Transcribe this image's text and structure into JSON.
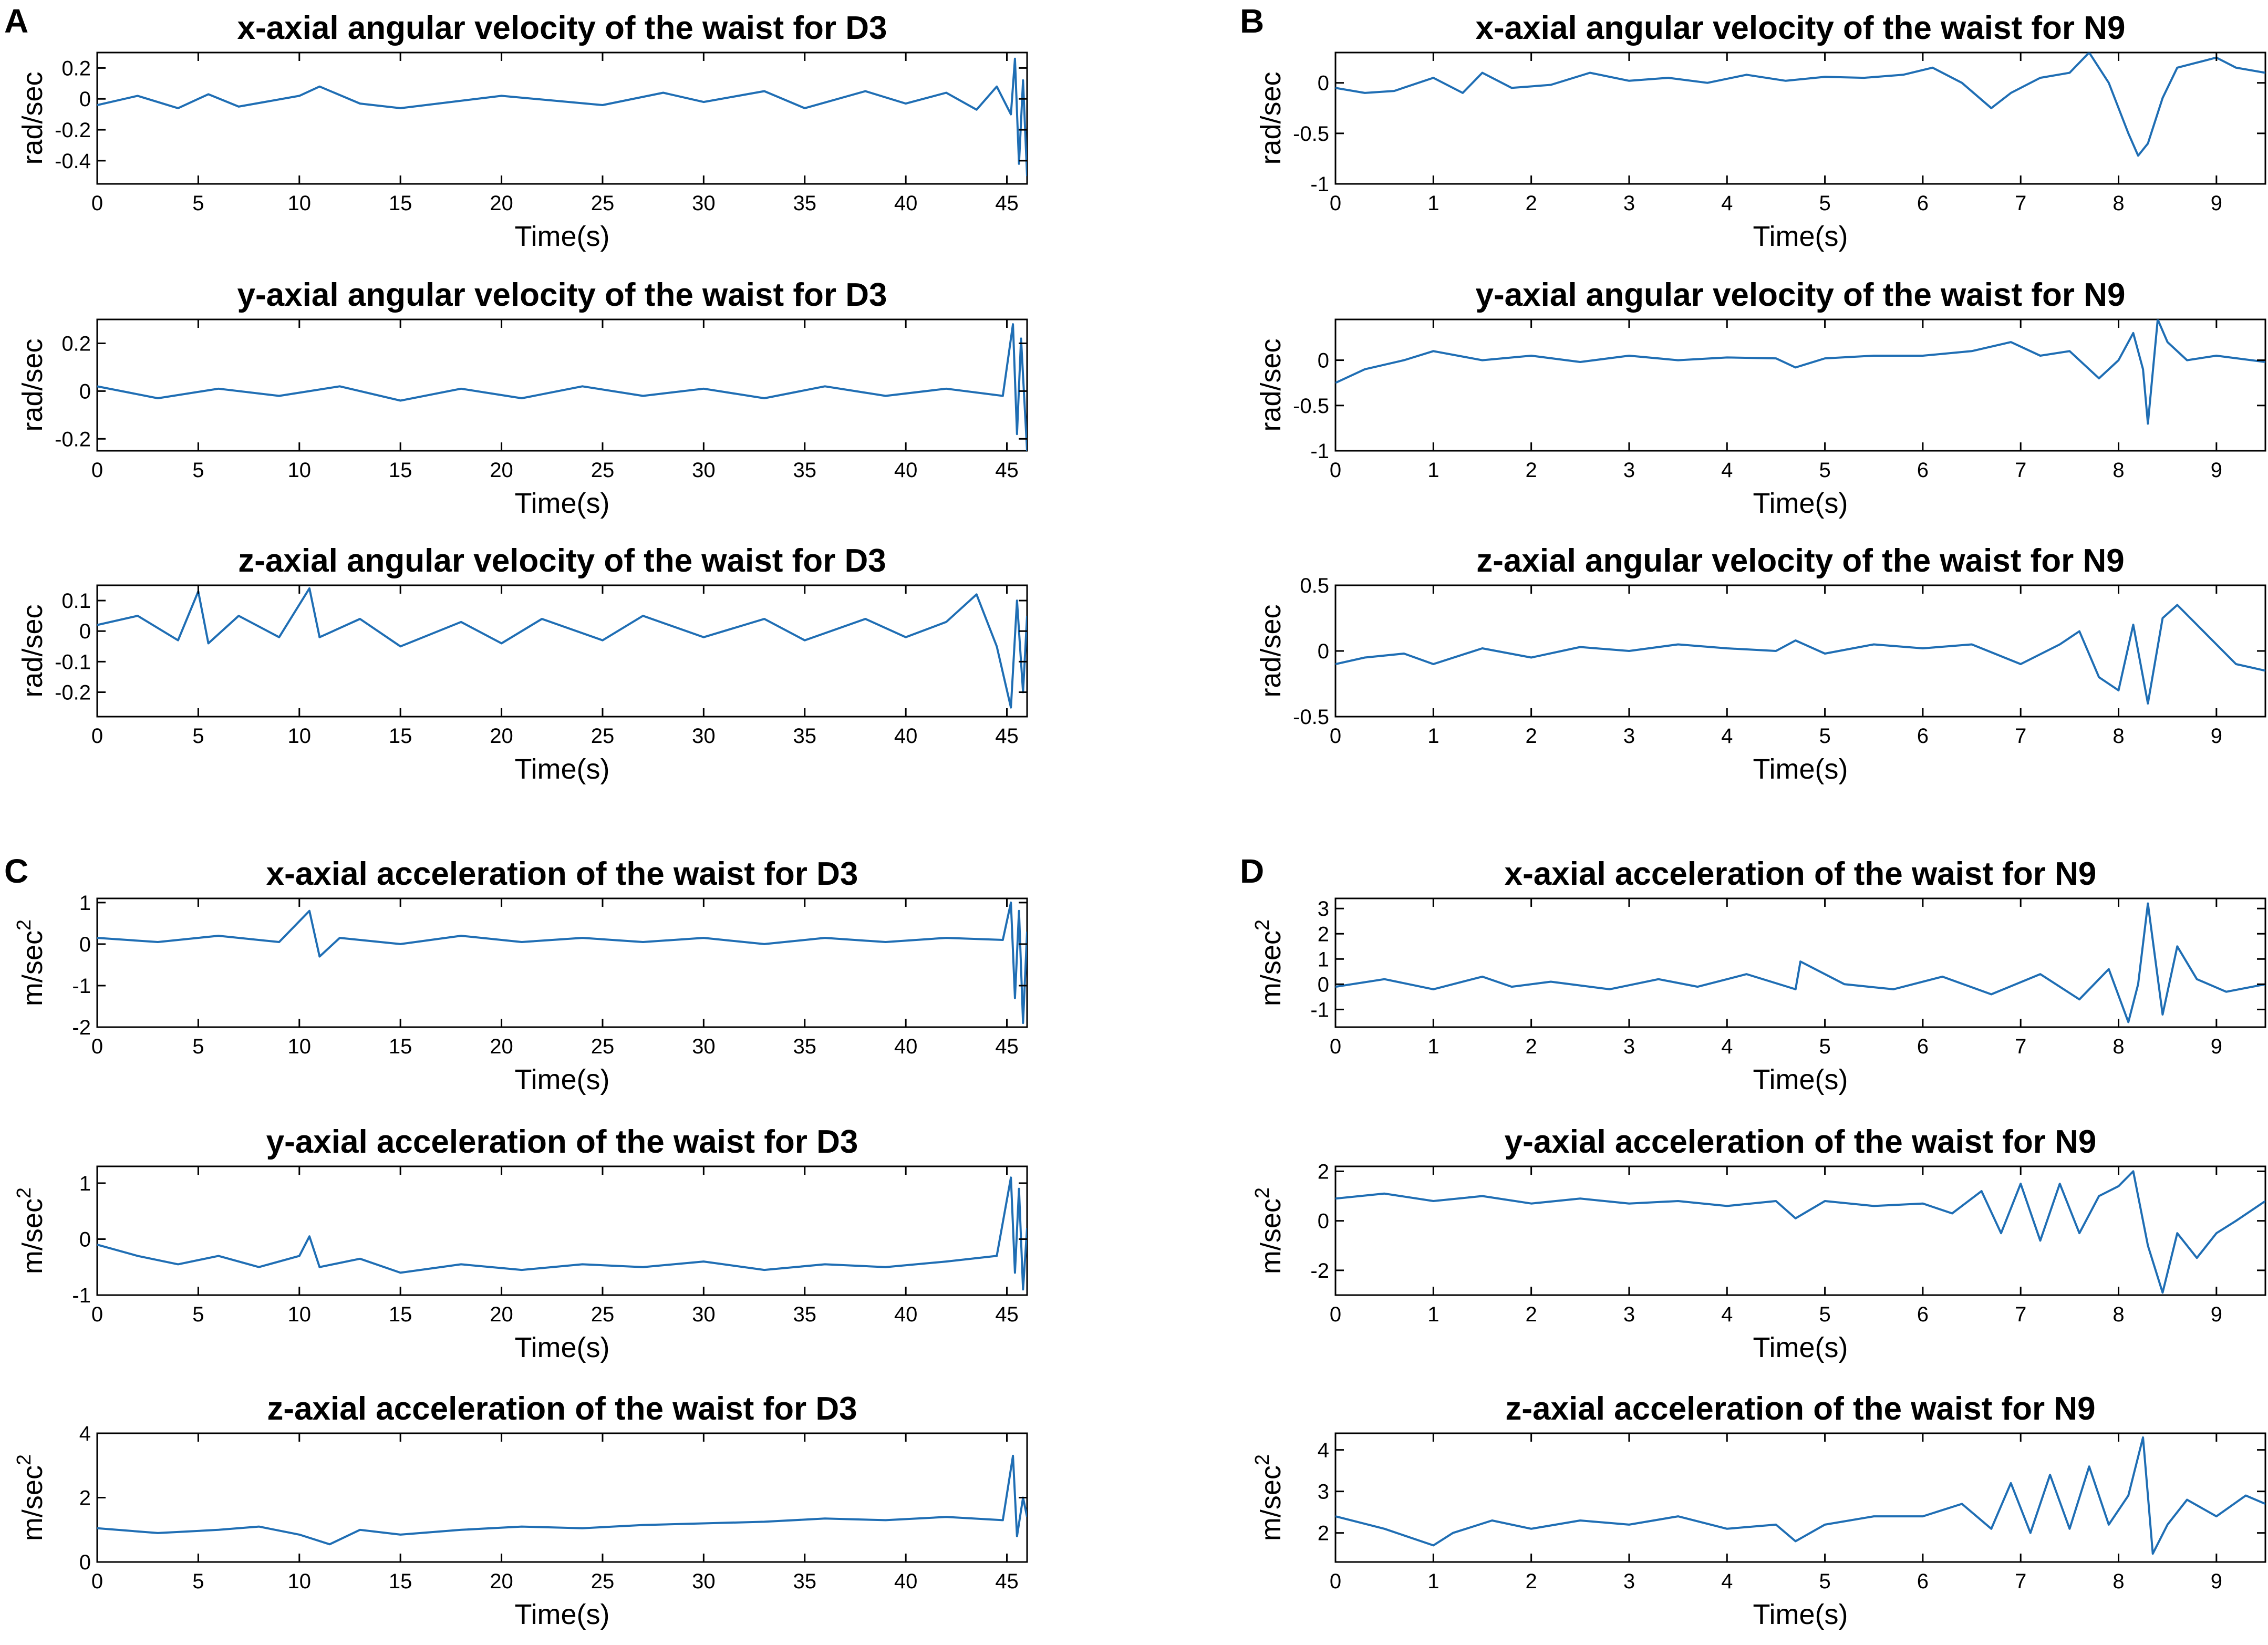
{
  "panel_labels": [
    "A",
    "B",
    "C",
    "D"
  ],
  "colors": {
    "series": "#1f6eb4",
    "axes": "#000000",
    "background": "#ffffff"
  },
  "chart_data": [
    {
      "type": "line",
      "panel": "A",
      "title": "x-axial angular velocity of the waist for D3",
      "xlabel": "Time(s)",
      "ylabel": "rad/sec",
      "xlim": [
        0,
        46
      ],
      "ylim": [
        -0.55,
        0.3
      ],
      "xticks": [
        0,
        5,
        10,
        15,
        20,
        25,
        30,
        35,
        40,
        45
      ],
      "yticks": [
        0.2,
        0,
        -0.2,
        -0.4
      ],
      "series": [
        {
          "x": [
            0,
            2,
            4,
            5.5,
            7,
            10,
            11,
            13,
            15,
            20,
            25,
            28,
            30,
            33,
            35,
            38,
            40,
            42,
            43.5,
            44.5,
            45.2,
            45.4,
            45.6,
            45.8,
            46
          ],
          "y": [
            -0.04,
            0.02,
            -0.06,
            0.03,
            -0.05,
            0.02,
            0.08,
            -0.03,
            -0.06,
            0.02,
            -0.04,
            0.04,
            -0.02,
            0.05,
            -0.06,
            0.05,
            -0.03,
            0.04,
            -0.07,
            0.08,
            -0.1,
            0.26,
            -0.42,
            0.12,
            -0.5
          ]
        }
      ],
      "grid": false
    },
    {
      "type": "line",
      "panel": "A",
      "title": "y-axial angular velocity of the waist for D3",
      "xlabel": "Time(s)",
      "ylabel": "rad/sec",
      "xlim": [
        0,
        46
      ],
      "ylim": [
        -0.25,
        0.3
      ],
      "xticks": [
        0,
        5,
        10,
        15,
        20,
        25,
        30,
        35,
        40,
        45
      ],
      "yticks": [
        0.2,
        0,
        -0.2
      ],
      "series": [
        {
          "x": [
            0,
            3,
            6,
            9,
            12,
            15,
            18,
            21,
            24,
            27,
            30,
            33,
            36,
            39,
            42,
            44.8,
            45.3,
            45.5,
            45.7,
            46
          ],
          "y": [
            0.02,
            -0.03,
            0.01,
            -0.02,
            0.02,
            -0.04,
            0.01,
            -0.03,
            0.02,
            -0.02,
            0.01,
            -0.03,
            0.02,
            -0.02,
            0.01,
            -0.02,
            0.28,
            -0.18,
            0.22,
            -0.25
          ]
        }
      ],
      "grid": false
    },
    {
      "type": "line",
      "panel": "A",
      "title": "z-axial angular velocity of the waist for D3",
      "xlabel": "Time(s)",
      "ylabel": "rad/sec",
      "xlim": [
        0,
        46
      ],
      "ylim": [
        -0.28,
        0.15
      ],
      "xticks": [
        0,
        5,
        10,
        15,
        20,
        25,
        30,
        35,
        40,
        45
      ],
      "yticks": [
        0.1,
        0,
        -0.1,
        -0.2
      ],
      "series": [
        {
          "x": [
            0,
            2,
            4,
            5,
            5.5,
            7,
            9,
            10.5,
            11,
            13,
            15,
            18,
            20,
            22,
            25,
            27,
            30,
            33,
            35,
            38,
            40,
            42,
            43.5,
            44.5,
            45.2,
            45.5,
            45.8,
            46
          ],
          "y": [
            0.02,
            0.05,
            -0.03,
            0.13,
            -0.04,
            0.05,
            -0.02,
            0.14,
            -0.02,
            0.04,
            -0.05,
            0.03,
            -0.04,
            0.04,
            -0.03,
            0.05,
            -0.02,
            0.04,
            -0.03,
            0.04,
            -0.02,
            0.03,
            0.12,
            -0.05,
            -0.25,
            0.1,
            -0.2,
            0.05
          ]
        }
      ],
      "grid": false
    },
    {
      "type": "line",
      "panel": "B",
      "title": "x-axial angular velocity of the waist for N9",
      "xlabel": "Time(s)",
      "ylabel": "rad/sec",
      "xlim": [
        0,
        9.5
      ],
      "ylim": [
        -1,
        0.3
      ],
      "xticks": [
        0,
        1,
        2,
        3,
        4,
        5,
        6,
        7,
        8,
        9
      ],
      "yticks": [
        0,
        -0.5,
        -1
      ],
      "series": [
        {
          "x": [
            0,
            0.3,
            0.6,
            1,
            1.3,
            1.5,
            1.8,
            2.2,
            2.6,
            3,
            3.4,
            3.8,
            4.2,
            4.6,
            5,
            5.4,
            5.8,
            6.1,
            6.4,
            6.7,
            6.9,
            7.2,
            7.5,
            7.7,
            7.9,
            8.1,
            8.2,
            8.3,
            8.45,
            8.6,
            8.8,
            9,
            9.2,
            9.5
          ],
          "y": [
            -0.05,
            -0.1,
            -0.08,
            0.05,
            -0.1,
            0.1,
            -0.05,
            -0.02,
            0.1,
            0.02,
            0.05,
            0.0,
            0.08,
            0.02,
            0.06,
            0.05,
            0.08,
            0.15,
            0.0,
            -0.25,
            -0.1,
            0.05,
            0.1,
            0.3,
            0.0,
            -0.5,
            -0.72,
            -0.6,
            -0.15,
            0.15,
            0.2,
            0.25,
            0.15,
            0.1
          ]
        }
      ],
      "grid": false
    },
    {
      "type": "line",
      "panel": "B",
      "title": "y-axial angular velocity of the waist for N9",
      "xlabel": "Time(s)",
      "ylabel": "rad/sec",
      "xlim": [
        0,
        9.5
      ],
      "ylim": [
        -1,
        0.45
      ],
      "xticks": [
        0,
        1,
        2,
        3,
        4,
        5,
        6,
        7,
        8,
        9
      ],
      "yticks": [
        0,
        -0.5,
        -1
      ],
      "series": [
        {
          "x": [
            0,
            0.3,
            0.7,
            1,
            1.5,
            2,
            2.5,
            3,
            3.5,
            4,
            4.5,
            4.7,
            5,
            5.5,
            6,
            6.5,
            6.9,
            7.2,
            7.5,
            7.8,
            8,
            8.15,
            8.25,
            8.3,
            8.4,
            8.5,
            8.7,
            9,
            9.5
          ],
          "y": [
            -0.25,
            -0.1,
            0.0,
            0.1,
            0.0,
            0.05,
            -0.02,
            0.05,
            0.0,
            0.03,
            0.02,
            -0.08,
            0.02,
            0.05,
            0.05,
            0.1,
            0.2,
            0.05,
            0.1,
            -0.2,
            0.0,
            0.3,
            -0.1,
            -0.7,
            0.45,
            0.2,
            0.0,
            0.05,
            -0.02
          ]
        }
      ],
      "grid": false
    },
    {
      "type": "line",
      "panel": "B",
      "title": "z-axial angular velocity of the waist for N9",
      "xlabel": "Time(s)",
      "ylabel": "rad/sec",
      "xlim": [
        0,
        9.5
      ],
      "ylim": [
        -0.5,
        0.5
      ],
      "xticks": [
        0,
        1,
        2,
        3,
        4,
        5,
        6,
        7,
        8,
        9
      ],
      "yticks": [
        0.5,
        0,
        -0.5
      ],
      "series": [
        {
          "x": [
            0,
            0.3,
            0.7,
            1,
            1.5,
            2,
            2.5,
            3,
            3.5,
            4,
            4.5,
            4.7,
            5,
            5.5,
            6,
            6.5,
            7,
            7.4,
            7.6,
            7.8,
            8,
            8.15,
            8.3,
            8.45,
            8.6,
            8.8,
            9,
            9.2,
            9.5
          ],
          "y": [
            -0.1,
            -0.05,
            -0.02,
            -0.1,
            0.02,
            -0.05,
            0.03,
            0.0,
            0.05,
            0.02,
            0.0,
            0.08,
            -0.02,
            0.05,
            0.02,
            0.05,
            -0.1,
            0.05,
            0.15,
            -0.2,
            -0.3,
            0.2,
            -0.4,
            0.25,
            0.35,
            0.2,
            0.05,
            -0.1,
            -0.15
          ]
        }
      ],
      "grid": false
    },
    {
      "type": "line",
      "panel": "C",
      "title": "x-axial acceleration of the waist for D3",
      "xlabel": "Time(s)",
      "ylabel": "m/sec^2",
      "xlim": [
        0,
        46
      ],
      "ylim": [
        -2,
        1.1
      ],
      "xticks": [
        0,
        5,
        10,
        15,
        20,
        25,
        30,
        35,
        40,
        45
      ],
      "yticks": [
        1,
        0,
        -1,
        -2
      ],
      "series": [
        {
          "x": [
            0,
            3,
            6,
            9,
            10.5,
            11,
            12,
            15,
            18,
            21,
            24,
            27,
            30,
            33,
            36,
            39,
            42,
            44.8,
            45.2,
            45.4,
            45.6,
            45.8,
            46
          ],
          "y": [
            0.15,
            0.05,
            0.2,
            0.05,
            0.8,
            -0.3,
            0.15,
            0.0,
            0.2,
            0.05,
            0.15,
            0.05,
            0.15,
            0.0,
            0.15,
            0.05,
            0.15,
            0.1,
            1.0,
            -1.3,
            0.8,
            -1.9,
            0.3
          ]
        }
      ],
      "grid": false
    },
    {
      "type": "line",
      "panel": "C",
      "title": "y-axial acceleration of the waist for D3",
      "xlabel": "Time(s)",
      "ylabel": "m/sec^2",
      "xlim": [
        0,
        46
      ],
      "ylim": [
        -1,
        1.3
      ],
      "xticks": [
        0,
        5,
        10,
        15,
        20,
        25,
        30,
        35,
        40,
        45
      ],
      "yticks": [
        1,
        0,
        -1
      ],
      "series": [
        {
          "x": [
            0,
            2,
            4,
            6,
            8,
            10,
            10.5,
            11,
            13,
            15,
            18,
            21,
            24,
            27,
            30,
            33,
            36,
            39,
            42,
            44.5,
            45.2,
            45.4,
            45.6,
            45.8,
            46
          ],
          "y": [
            -0.1,
            -0.3,
            -0.45,
            -0.3,
            -0.5,
            -0.3,
            0.05,
            -0.5,
            -0.35,
            -0.6,
            -0.45,
            -0.55,
            -0.45,
            -0.5,
            -0.4,
            -0.55,
            -0.45,
            -0.5,
            -0.4,
            -0.3,
            1.1,
            -0.6,
            0.9,
            -0.9,
            0.2
          ]
        }
      ],
      "grid": false
    },
    {
      "type": "line",
      "panel": "C",
      "title": "z-axial acceleration of the waist for D3",
      "xlabel": "Time(s)",
      "ylabel": "m/sec^2",
      "xlim": [
        0,
        46
      ],
      "ylim": [
        0,
        4
      ],
      "xticks": [
        0,
        5,
        10,
        15,
        20,
        25,
        30,
        35,
        40,
        45
      ],
      "yticks": [
        4,
        2,
        0
      ],
      "series": [
        {
          "x": [
            0,
            3,
            6,
            8,
            10,
            11.5,
            13,
            15,
            18,
            21,
            24,
            27,
            30,
            33,
            36,
            39,
            42,
            44.8,
            45.3,
            45.5,
            45.8,
            46
          ],
          "y": [
            1.05,
            0.9,
            1.0,
            1.1,
            0.85,
            0.55,
            1.0,
            0.85,
            1.0,
            1.1,
            1.05,
            1.15,
            1.2,
            1.25,
            1.35,
            1.3,
            1.4,
            1.3,
            3.3,
            0.8,
            2.0,
            1.4
          ]
        }
      ],
      "grid": false
    },
    {
      "type": "line",
      "panel": "D",
      "title": "x-axial acceleration of the waist for N9",
      "xlabel": "Time(s)",
      "ylabel": "m/sec^2",
      "xlim": [
        0,
        9.5
      ],
      "ylim": [
        -1.7,
        3.4
      ],
      "xticks": [
        0,
        1,
        2,
        3,
        4,
        5,
        6,
        7,
        8,
        9
      ],
      "yticks": [
        3,
        2,
        1,
        0,
        -1
      ],
      "series": [
        {
          "x": [
            0,
            0.5,
            1,
            1.5,
            1.8,
            2.2,
            2.8,
            3.3,
            3.7,
            4.2,
            4.7,
            4.75,
            5.2,
            5.7,
            6.2,
            6.7,
            7.2,
            7.6,
            7.9,
            8.1,
            8.2,
            8.3,
            8.45,
            8.6,
            8.8,
            9.1,
            9.5
          ],
          "y": [
            -0.1,
            0.2,
            -0.2,
            0.3,
            -0.1,
            0.1,
            -0.2,
            0.2,
            -0.1,
            0.4,
            -0.2,
            0.9,
            0.0,
            -0.2,
            0.3,
            -0.4,
            0.4,
            -0.6,
            0.6,
            -1.5,
            0.0,
            3.2,
            -1.2,
            1.5,
            0.2,
            -0.3,
            0.0
          ]
        }
      ],
      "grid": false
    },
    {
      "type": "line",
      "panel": "D",
      "title": "y-axial acceleration of the waist for N9",
      "xlabel": "Time(s)",
      "ylabel": "m/sec^2",
      "xlim": [
        0,
        9.5
      ],
      "ylim": [
        -3,
        2.2
      ],
      "xticks": [
        0,
        1,
        2,
        3,
        4,
        5,
        6,
        7,
        8,
        9
      ],
      "yticks": [
        2,
        0,
        -2
      ],
      "series": [
        {
          "x": [
            0,
            0.5,
            1,
            1.5,
            2,
            2.5,
            3,
            3.5,
            4,
            4.5,
            4.7,
            5,
            5.5,
            6,
            6.3,
            6.6,
            6.8,
            7,
            7.2,
            7.4,
            7.6,
            7.8,
            8,
            8.15,
            8.3,
            8.45,
            8.6,
            8.8,
            9,
            9.2,
            9.5
          ],
          "y": [
            0.9,
            1.1,
            0.8,
            1.0,
            0.7,
            0.9,
            0.7,
            0.8,
            0.6,
            0.8,
            0.1,
            0.8,
            0.6,
            0.7,
            0.3,
            1.2,
            -0.5,
            1.5,
            -0.8,
            1.5,
            -0.5,
            1.0,
            1.4,
            2.0,
            -1.0,
            -2.9,
            -0.5,
            -1.5,
            -0.5,
            0.0,
            0.8
          ]
        }
      ],
      "grid": false
    },
    {
      "type": "line",
      "panel": "D",
      "title": "z-axial acceleration of the waist for N9",
      "xlabel": "Time(s)",
      "ylabel": "m/sec^2",
      "xlim": [
        0,
        9.5
      ],
      "ylim": [
        1.3,
        4.4
      ],
      "xticks": [
        0,
        1,
        2,
        3,
        4,
        5,
        6,
        7,
        8,
        9
      ],
      "yticks": [
        4,
        3,
        2
      ],
      "series": [
        {
          "x": [
            0,
            0.5,
            1,
            1.2,
            1.6,
            2,
            2.5,
            3,
            3.5,
            4,
            4.5,
            4.7,
            5,
            5.5,
            6,
            6.4,
            6.7,
            6.9,
            7.1,
            7.3,
            7.5,
            7.7,
            7.9,
            8.1,
            8.25,
            8.35,
            8.5,
            8.7,
            9,
            9.3,
            9.5
          ],
          "y": [
            2.4,
            2.1,
            1.7,
            2.0,
            2.3,
            2.1,
            2.3,
            2.2,
            2.4,
            2.1,
            2.2,
            1.8,
            2.2,
            2.4,
            2.4,
            2.7,
            2.1,
            3.2,
            2.0,
            3.4,
            2.1,
            3.6,
            2.2,
            2.9,
            4.3,
            1.5,
            2.2,
            2.8,
            2.4,
            2.9,
            2.7
          ]
        }
      ],
      "grid": false
    }
  ]
}
